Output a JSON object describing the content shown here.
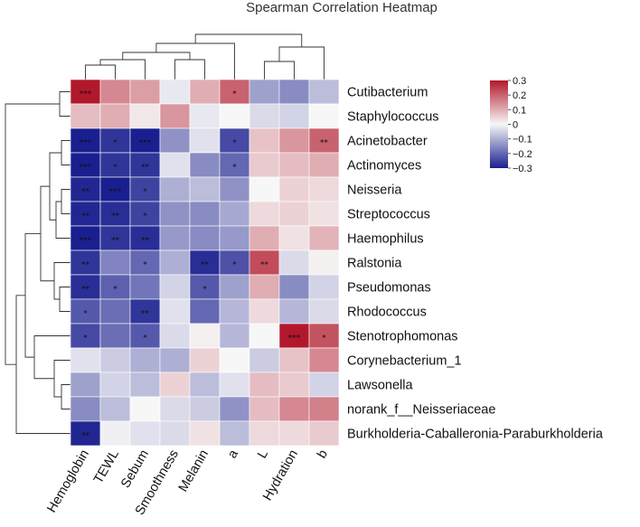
{
  "chart_data": {
    "type": "heatmap",
    "title": "Spearman Correlation Heatmap",
    "rows": [
      "Cutibacterium",
      "Staphylococcus",
      "Acinetobacter",
      "Actinomyces",
      "Neisseria",
      "Streptococcus",
      "Haemophilus",
      "Ralstonia",
      "Pseudomonas",
      "Rhodococcus",
      "Stenotrophomonas",
      "Corynebacterium_1",
      "Lawsonella",
      "norank_f__Neisseriaceae",
      "Burkholderia-Caballeronia-Paraburkholderia"
    ],
    "columns": [
      "Hemoglobin",
      "TEWL",
      "Sebum",
      "Smoothness",
      "Melanin",
      "a",
      "L",
      "Hydration",
      "b"
    ],
    "values": [
      [
        0.3,
        0.15,
        0.12,
        -0.02,
        0.1,
        0.2,
        -0.12,
        -0.15,
        -0.08
      ],
      [
        0.08,
        0.1,
        0.02,
        0.13,
        -0.02,
        0.0,
        -0.04,
        -0.05,
        0.0
      ],
      [
        -0.3,
        -0.27,
        -0.3,
        -0.14,
        -0.03,
        -0.24,
        0.07,
        0.13,
        0.2
      ],
      [
        -0.3,
        -0.27,
        -0.27,
        -0.03,
        -0.15,
        -0.2,
        0.06,
        0.08,
        0.1
      ],
      [
        -0.29,
        -0.3,
        -0.25,
        -0.1,
        -0.08,
        -0.14,
        0.0,
        0.05,
        0.04
      ],
      [
        -0.29,
        -0.28,
        -0.25,
        -0.14,
        -0.15,
        -0.11,
        0.04,
        0.05,
        0.03
      ],
      [
        -0.3,
        -0.27,
        -0.28,
        -0.13,
        -0.15,
        -0.13,
        0.1,
        0.03,
        0.09
      ],
      [
        -0.27,
        -0.16,
        -0.2,
        -0.1,
        -0.28,
        -0.23,
        0.23,
        -0.04,
        0.01
      ],
      [
        -0.28,
        -0.21,
        -0.18,
        -0.05,
        -0.22,
        -0.12,
        0.1,
        -0.15,
        -0.05
      ],
      [
        -0.22,
        -0.19,
        -0.27,
        -0.03,
        -0.2,
        -0.09,
        0.04,
        -0.09,
        -0.04
      ],
      [
        -0.24,
        -0.19,
        -0.22,
        -0.04,
        0.01,
        -0.09,
        0.0,
        0.3,
        0.22
      ],
      [
        -0.03,
        -0.06,
        -0.1,
        -0.1,
        0.05,
        0.0,
        -0.06,
        0.07,
        0.15
      ],
      [
        -0.12,
        -0.05,
        -0.08,
        0.05,
        -0.08,
        -0.03,
        0.08,
        0.06,
        -0.05
      ],
      [
        -0.15,
        -0.08,
        0.0,
        -0.04,
        -0.06,
        -0.14,
        0.08,
        0.15,
        0.16
      ],
      [
        -0.29,
        -0.01,
        -0.03,
        -0.04,
        0.03,
        -0.08,
        0.04,
        0.04,
        0.06
      ]
    ],
    "significance": [
      [
        "***",
        "",
        "",
        "",
        "",
        "*",
        "",
        "",
        ""
      ],
      [
        "",
        "",
        "",
        "",
        "",
        "",
        "",
        "",
        ""
      ],
      [
        "***",
        "*",
        "***",
        "",
        "",
        "*",
        "",
        "",
        "**"
      ],
      [
        "***",
        "*",
        "**",
        "",
        "",
        "*",
        "",
        "",
        ""
      ],
      [
        "**",
        "***",
        "*",
        "",
        "",
        "",
        "",
        "",
        ""
      ],
      [
        "**",
        "**",
        "*",
        "",
        "",
        "",
        "",
        "",
        ""
      ],
      [
        "***",
        "**",
        "**",
        "",
        "",
        "",
        "",
        "",
        ""
      ],
      [
        "**",
        "",
        "*",
        "",
        "**",
        "*",
        "**",
        "",
        ""
      ],
      [
        "**",
        "*",
        "",
        "",
        "*",
        "",
        "",
        "",
        ""
      ],
      [
        "*",
        "",
        "**",
        "",
        "",
        "",
        "",
        "",
        ""
      ],
      [
        "*",
        "",
        "*",
        "",
        "",
        "",
        "",
        "***",
        "*"
      ],
      [
        "",
        "",
        "",
        "",
        "",
        "",
        "",
        "",
        ""
      ],
      [
        "",
        "",
        "",
        "",
        "",
        "",
        "",
        "",
        ""
      ],
      [
        "",
        "",
        "",
        "",
        "",
        "",
        "",
        "",
        ""
      ],
      [
        "**",
        "",
        "",
        "",
        "",
        "",
        "",
        "",
        ""
      ]
    ],
    "colorscale": {
      "min": -0.3,
      "max": 0.3,
      "low": "#1a1f8f",
      "mid": "#f7f7f7",
      "high": "#b2182b"
    },
    "legend": {
      "ticks": [
        0.3,
        0.2,
        0.1,
        0,
        -0.1,
        -0.2,
        -0.3
      ],
      "tick_labels": [
        "0.3",
        "0.2",
        "0.1",
        "0",
        "−0.1",
        "−0.2",
        "−0.3"
      ]
    }
  }
}
